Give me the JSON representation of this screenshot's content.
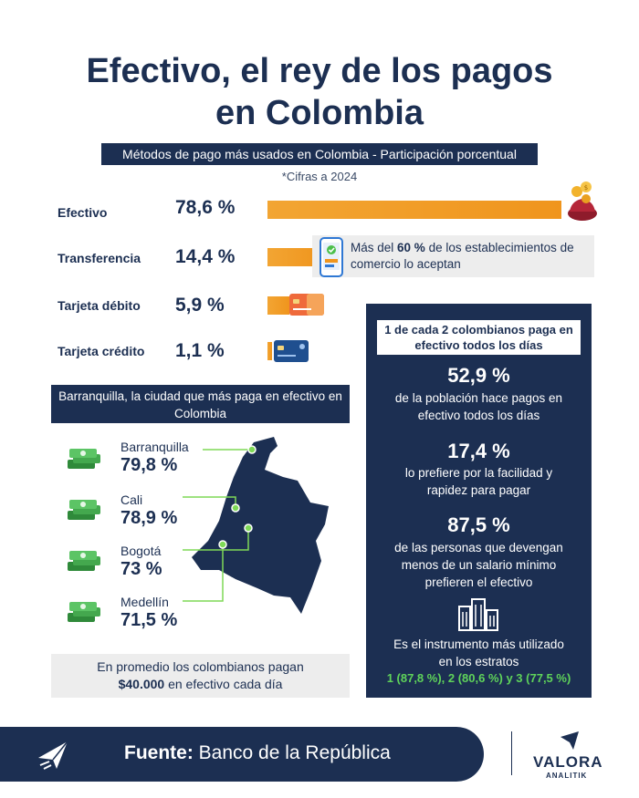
{
  "header": {
    "title_line1": "Efectivo, el rey de los pagos",
    "title_line2": "en Colombia",
    "subtitle": "Métodos de pago más usados en Colombia - Participación porcentual",
    "note": "*Cifras a 2024"
  },
  "chart_data": {
    "type": "bar",
    "categories": [
      "Efectivo",
      "Transferencia",
      "Tarjeta débito",
      "Tarjeta crédito"
    ],
    "values": [
      78.6,
      14.4,
      5.9,
      1.1
    ],
    "value_labels": [
      "78,6 %",
      "14,4 %",
      "5,9 %",
      "1,1 %"
    ],
    "title": "Métodos de pago más usados en Colombia - Participación porcentual",
    "unit": "%",
    "ylim": [
      0,
      78.6
    ],
    "bar_color": "#f0951d"
  },
  "transfer_note": {
    "prefix": "Más del ",
    "highlight": "60 %",
    "suffix": " de los establecimientos de comercio lo aceptan"
  },
  "cities": {
    "header": "Barranquilla, la ciudad que más paga en efectivo en Colombia",
    "items": [
      {
        "name": "Barranquilla",
        "value": "79,8 %"
      },
      {
        "name": "Cali",
        "value": "78,9 %"
      },
      {
        "name": "Bogotá",
        "value": "73 %"
      },
      {
        "name": "Medellín",
        "value": "71,5 %"
      }
    ],
    "average_line1": "En promedio los colombianos pagan",
    "average_amount": "$40.000",
    "average_line2": " en efectivo cada día"
  },
  "panel": {
    "heading": "1 de cada 2 colombianos paga en efectivo todos los días",
    "stat1": "52,9 %",
    "stat1_text": "de la población hace pagos en efectivo todos los días",
    "stat2": "17,4 %",
    "stat2_text": "lo prefiere por la facilidad y rapidez para pagar",
    "stat3": "87,5 %",
    "stat3_text": "de las personas que devengan menos de un salario mínimo prefieren el efectivo",
    "stat4_text": "Es el instrumento más utilizado en los estratos",
    "stat4_green": "1 (87,8 %), 2 (80,6 %) y 3 (77,5 %)"
  },
  "footer": {
    "source_label": "Fuente:",
    "source": " Banco de la República",
    "brand": "VALORA",
    "brand_sub": "ANALITIK"
  },
  "colors": {
    "navy": "#1c2f52",
    "orange": "#f0951d",
    "green": "#5fd35a",
    "gray_box": "#ededed"
  }
}
